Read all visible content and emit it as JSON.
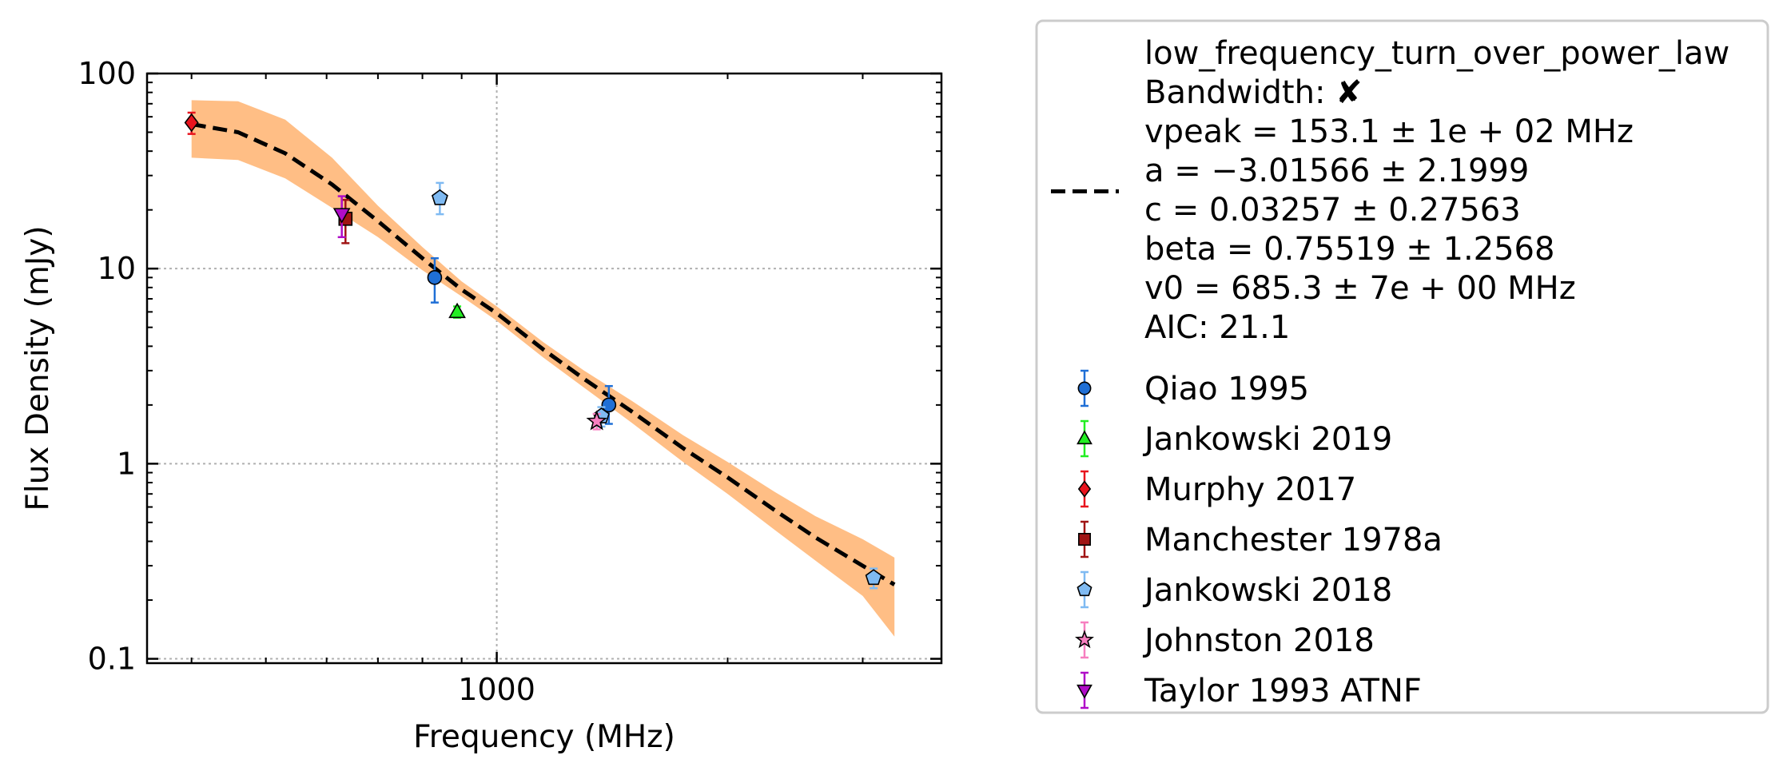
{
  "chart_data": {
    "type": "scatter",
    "xlabel": "Frequency (MHz)",
    "ylabel": "Flux Density (mJy)",
    "x_scale": "log",
    "y_scale": "log",
    "xlim": [
      350,
      3800
    ],
    "ylim": [
      0.095,
      100
    ],
    "x_ticks": [
      {
        "value": 1000,
        "label": "1000"
      }
    ],
    "y_ticks": [
      {
        "value": 0.1,
        "label": "0.1"
      },
      {
        "value": 1,
        "label": "1"
      },
      {
        "value": 10,
        "label": "10"
      },
      {
        "value": 100,
        "label": "100"
      }
    ],
    "grid": true,
    "legend_position": "outside-right",
    "fit": {
      "model_name": "low_frequency_turn_over_power_law",
      "bandwidth_line": "Bandwidth: ✘",
      "param_lines": [
        "vpeak = 153.1 ± 1e + 02 MHz",
        "a = −3.01566 ± 2.1999",
        "c = 0.03257 ± 0.27563",
        "beta = 0.75519 ± 1.2568",
        "v0 = 685.3 ± 7e + 00 MHz"
      ],
      "aic_line": "AIC: 21.1",
      "color": "#000000",
      "band_color": "#ffbe85",
      "curve": {
        "x": [
          400,
          460,
          530,
          610,
          700,
          800,
          900,
          1000,
          1150,
          1300,
          1500,
          1750,
          2000,
          2300,
          2600,
          3000,
          3300
        ],
        "y": [
          55,
          50,
          39,
          27,
          17.5,
          11.3,
          7.8,
          5.9,
          3.85,
          2.72,
          1.85,
          1.2,
          0.85,
          0.58,
          0.42,
          0.3,
          0.24
        ]
      },
      "band_upper": {
        "x": [
          400,
          460,
          530,
          610,
          700,
          800,
          900,
          1000,
          1150,
          1300,
          1500,
          1750,
          2000,
          2300,
          2600,
          3000,
          3300
        ],
        "y": [
          73,
          72,
          58,
          37,
          21,
          12.9,
          8.6,
          6.4,
          4.2,
          3.0,
          2.1,
          1.4,
          1.02,
          0.72,
          0.54,
          0.41,
          0.33
        ]
      },
      "band_lower": {
        "x": [
          400,
          460,
          530,
          610,
          700,
          800,
          900,
          1000,
          1150,
          1300,
          1500,
          1750,
          2000,
          2300,
          2600,
          3000,
          3300
        ],
        "y": [
          37,
          36,
          29,
          20.5,
          14.5,
          9.8,
          7.2,
          5.4,
          3.5,
          2.45,
          1.62,
          1.02,
          0.7,
          0.46,
          0.32,
          0.21,
          0.13
        ]
      }
    },
    "series": [
      {
        "name": "Qiao 1995",
        "marker": "circle",
        "fill": "#1f6fd6",
        "err_color": "#1f6fd6",
        "points": [
          {
            "x": 830,
            "y": 9.0,
            "lo": 6.7,
            "hi": 11.3
          },
          {
            "x": 1400,
            "y": 2.0,
            "lo": 1.6,
            "hi": 2.5
          }
        ]
      },
      {
        "name": "Jankowski 2019",
        "marker": "triangle-up",
        "fill": "#22ee22",
        "err_color": "#22ee22",
        "points": [
          {
            "x": 888,
            "y": 6.0,
            "lo": 5.6,
            "hi": 6.4
          }
        ]
      },
      {
        "name": "Murphy 2017",
        "marker": "diamond",
        "fill": "#e8141e",
        "err_color": "#e8141e",
        "points": [
          {
            "x": 400,
            "y": 56,
            "lo": 49,
            "hi": 63
          }
        ]
      },
      {
        "name": "Manchester 1978a",
        "marker": "square",
        "fill": "#a01414",
        "err_color": "#a01414",
        "points": [
          {
            "x": 635,
            "y": 18,
            "lo": 13.5,
            "hi": 22.5
          }
        ]
      },
      {
        "name": "Jankowski 2018",
        "marker": "pentagon",
        "fill": "#7fbaf2",
        "err_color": "#7fbaf2",
        "points": [
          {
            "x": 843,
            "y": 23,
            "lo": 19,
            "hi": 27.5
          },
          {
            "x": 1369,
            "y": 1.75,
            "lo": 1.55,
            "hi": 1.95
          },
          {
            "x": 3100,
            "y": 0.26,
            "lo": 0.23,
            "hi": 0.29
          }
        ]
      },
      {
        "name": "Johnston 2018",
        "marker": "star",
        "fill": "#f77fc0",
        "err_color": "#f77fc0",
        "points": [
          {
            "x": 1350,
            "y": 1.65,
            "lo": 1.5,
            "hi": 1.8
          }
        ]
      },
      {
        "name": "Taylor 1993 ATNF",
        "marker": "triangle-down",
        "fill": "#b00cc8",
        "err_color": "#b00cc8",
        "points": [
          {
            "x": 628,
            "y": 19,
            "lo": 14.5,
            "hi": 23.5
          }
        ]
      }
    ]
  }
}
